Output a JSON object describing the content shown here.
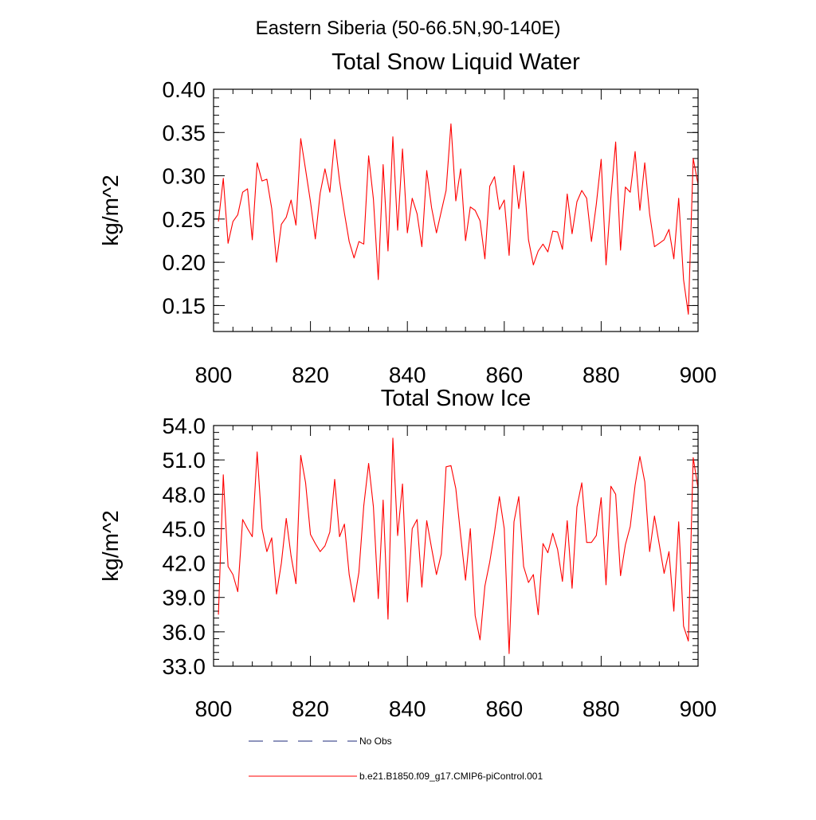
{
  "figure_title": "Eastern Siberia (50-66.5N,90-140E)",
  "chart_data": [
    {
      "type": "line",
      "title": "Total Snow Liquid Water",
      "xlabel": "",
      "ylabel": "kg/m^2",
      "xlim": [
        800,
        900
      ],
      "ylim": [
        0.12,
        0.4
      ],
      "xticks": [
        800,
        820,
        840,
        860,
        880,
        900
      ],
      "xtick_labels": [
        "800",
        "820",
        "840",
        "860",
        "880",
        "900"
      ],
      "yticks": [
        0.15,
        0.2,
        0.25,
        0.3,
        0.35,
        0.4
      ],
      "ytick_labels": [
        "0.15",
        "0.20",
        "0.25",
        "0.30",
        "0.35",
        "0.40"
      ],
      "grid": false,
      "series": [
        {
          "name": "b.e21.B1850.f09_g17.CMIP6-piControl.001",
          "color": "#ff0000",
          "x": [
            801,
            802,
            803,
            804,
            805,
            806,
            807,
            808,
            809,
            810,
            811,
            812,
            813,
            814,
            815,
            816,
            817,
            818,
            819,
            820,
            821,
            822,
            823,
            824,
            825,
            826,
            827,
            828,
            829,
            830,
            831,
            832,
            833,
            834,
            835,
            836,
            837,
            838,
            839,
            840,
            841,
            842,
            843,
            844,
            845,
            846,
            847,
            848,
            849,
            850,
            851,
            852,
            853,
            854,
            855,
            856,
            857,
            858,
            859,
            860,
            861,
            862,
            863,
            864,
            865,
            866,
            867,
            868,
            869,
            870,
            871,
            872,
            873,
            874,
            875,
            876,
            877,
            878,
            879,
            880,
            881,
            882,
            883,
            884,
            885,
            886,
            887,
            888,
            889,
            890,
            891,
            892,
            893,
            894,
            895,
            896,
            897,
            898,
            899,
            900
          ],
          "values": [
            0.247,
            0.297,
            0.222,
            0.247,
            0.255,
            0.281,
            0.285,
            0.226,
            0.315,
            0.294,
            0.296,
            0.262,
            0.2,
            0.244,
            0.252,
            0.272,
            0.243,
            0.343,
            0.307,
            0.27,
            0.227,
            0.28,
            0.308,
            0.281,
            0.342,
            0.294,
            0.257,
            0.224,
            0.205,
            0.224,
            0.221,
            0.323,
            0.273,
            0.18,
            0.313,
            0.213,
            0.345,
            0.237,
            0.331,
            0.234,
            0.274,
            0.256,
            0.218,
            0.306,
            0.263,
            0.234,
            0.259,
            0.283,
            0.36,
            0.271,
            0.308,
            0.225,
            0.264,
            0.26,
            0.248,
            0.204,
            0.288,
            0.299,
            0.261,
            0.272,
            0.208,
            0.312,
            0.262,
            0.305,
            0.226,
            0.197,
            0.213,
            0.221,
            0.212,
            0.236,
            0.235,
            0.215,
            0.279,
            0.233,
            0.27,
            0.283,
            0.274,
            0.224,
            0.267,
            0.319,
            0.197,
            0.275,
            0.339,
            0.214,
            0.287,
            0.281,
            0.328,
            0.26,
            0.315,
            0.256,
            0.218,
            0.222,
            0.226,
            0.238,
            0.204,
            0.274,
            0.18,
            0.14,
            0.32,
            0.29
          ]
        }
      ]
    },
    {
      "type": "line",
      "title": "Total Snow Ice",
      "xlabel": "",
      "ylabel": "kg/m^2",
      "xlim": [
        800,
        900
      ],
      "ylim": [
        33.0,
        54.0
      ],
      "xticks": [
        800,
        820,
        840,
        860,
        880,
        900
      ],
      "xtick_labels": [
        "800",
        "820",
        "840",
        "860",
        "880",
        "900"
      ],
      "yticks": [
        33.0,
        36.0,
        39.0,
        42.0,
        45.0,
        48.0,
        51.0,
        54.0
      ],
      "ytick_labels": [
        "33.0",
        "36.0",
        "39.0",
        "42.0",
        "45.0",
        "48.0",
        "51.0",
        "54.0"
      ],
      "grid": false,
      "series": [
        {
          "name": "b.e21.B1850.f09_g17.CMIP6-piControl.001",
          "color": "#ff0000",
          "x": [
            801,
            802,
            803,
            804,
            805,
            806,
            807,
            808,
            809,
            810,
            811,
            812,
            813,
            814,
            815,
            816,
            817,
            818,
            819,
            820,
            821,
            822,
            823,
            824,
            825,
            826,
            827,
            828,
            829,
            830,
            831,
            832,
            833,
            834,
            835,
            836,
            837,
            838,
            839,
            840,
            841,
            842,
            843,
            844,
            845,
            846,
            847,
            848,
            849,
            850,
            851,
            852,
            853,
            854,
            855,
            856,
            857,
            858,
            859,
            860,
            861,
            862,
            863,
            864,
            865,
            866,
            867,
            868,
            869,
            870,
            871,
            872,
            873,
            874,
            875,
            876,
            877,
            878,
            879,
            880,
            881,
            882,
            883,
            884,
            885,
            886,
            887,
            888,
            889,
            890,
            891,
            892,
            893,
            894,
            895,
            896,
            897,
            898,
            899,
            900
          ],
          "values": [
            37.5,
            49.7,
            41.7,
            41.0,
            39.5,
            45.8,
            45.0,
            44.3,
            51.7,
            45.0,
            43.0,
            44.2,
            39.3,
            42.0,
            45.9,
            42.6,
            40.2,
            51.4,
            49.0,
            44.5,
            43.7,
            43.0,
            43.5,
            44.7,
            49.3,
            44.3,
            45.4,
            41.0,
            38.6,
            41.2,
            47.0,
            50.7,
            46.9,
            38.9,
            47.5,
            37.1,
            52.9,
            44.4,
            48.9,
            38.6,
            45.0,
            45.8,
            39.9,
            45.7,
            43.3,
            41.0,
            42.8,
            50.4,
            50.5,
            48.5,
            44.4,
            40.5,
            45.0,
            37.4,
            35.3,
            40.0,
            42.1,
            44.7,
            47.8,
            45.0,
            34.1,
            45.6,
            47.8,
            41.7,
            40.3,
            41.0,
            37.5,
            43.7,
            42.9,
            44.6,
            43.2,
            40.4,
            45.7,
            39.8,
            46.9,
            49.0,
            43.8,
            43.8,
            44.4,
            47.7,
            40.1,
            48.7,
            48.0,
            40.9,
            43.6,
            45.2,
            48.8,
            51.3,
            49.1,
            43.0,
            46.1,
            43.6,
            41.1,
            43.0,
            37.8,
            45.6,
            36.5,
            35.2,
            51.2,
            48.5
          ]
        }
      ]
    }
  ],
  "legend": [
    {
      "label": "No Obs",
      "style": "dashed",
      "color": "#1e2a78"
    },
    {
      "label": "b.e21.B1850.f09_g17.CMIP6-piControl.001",
      "style": "solid",
      "color": "#ff0000"
    }
  ]
}
